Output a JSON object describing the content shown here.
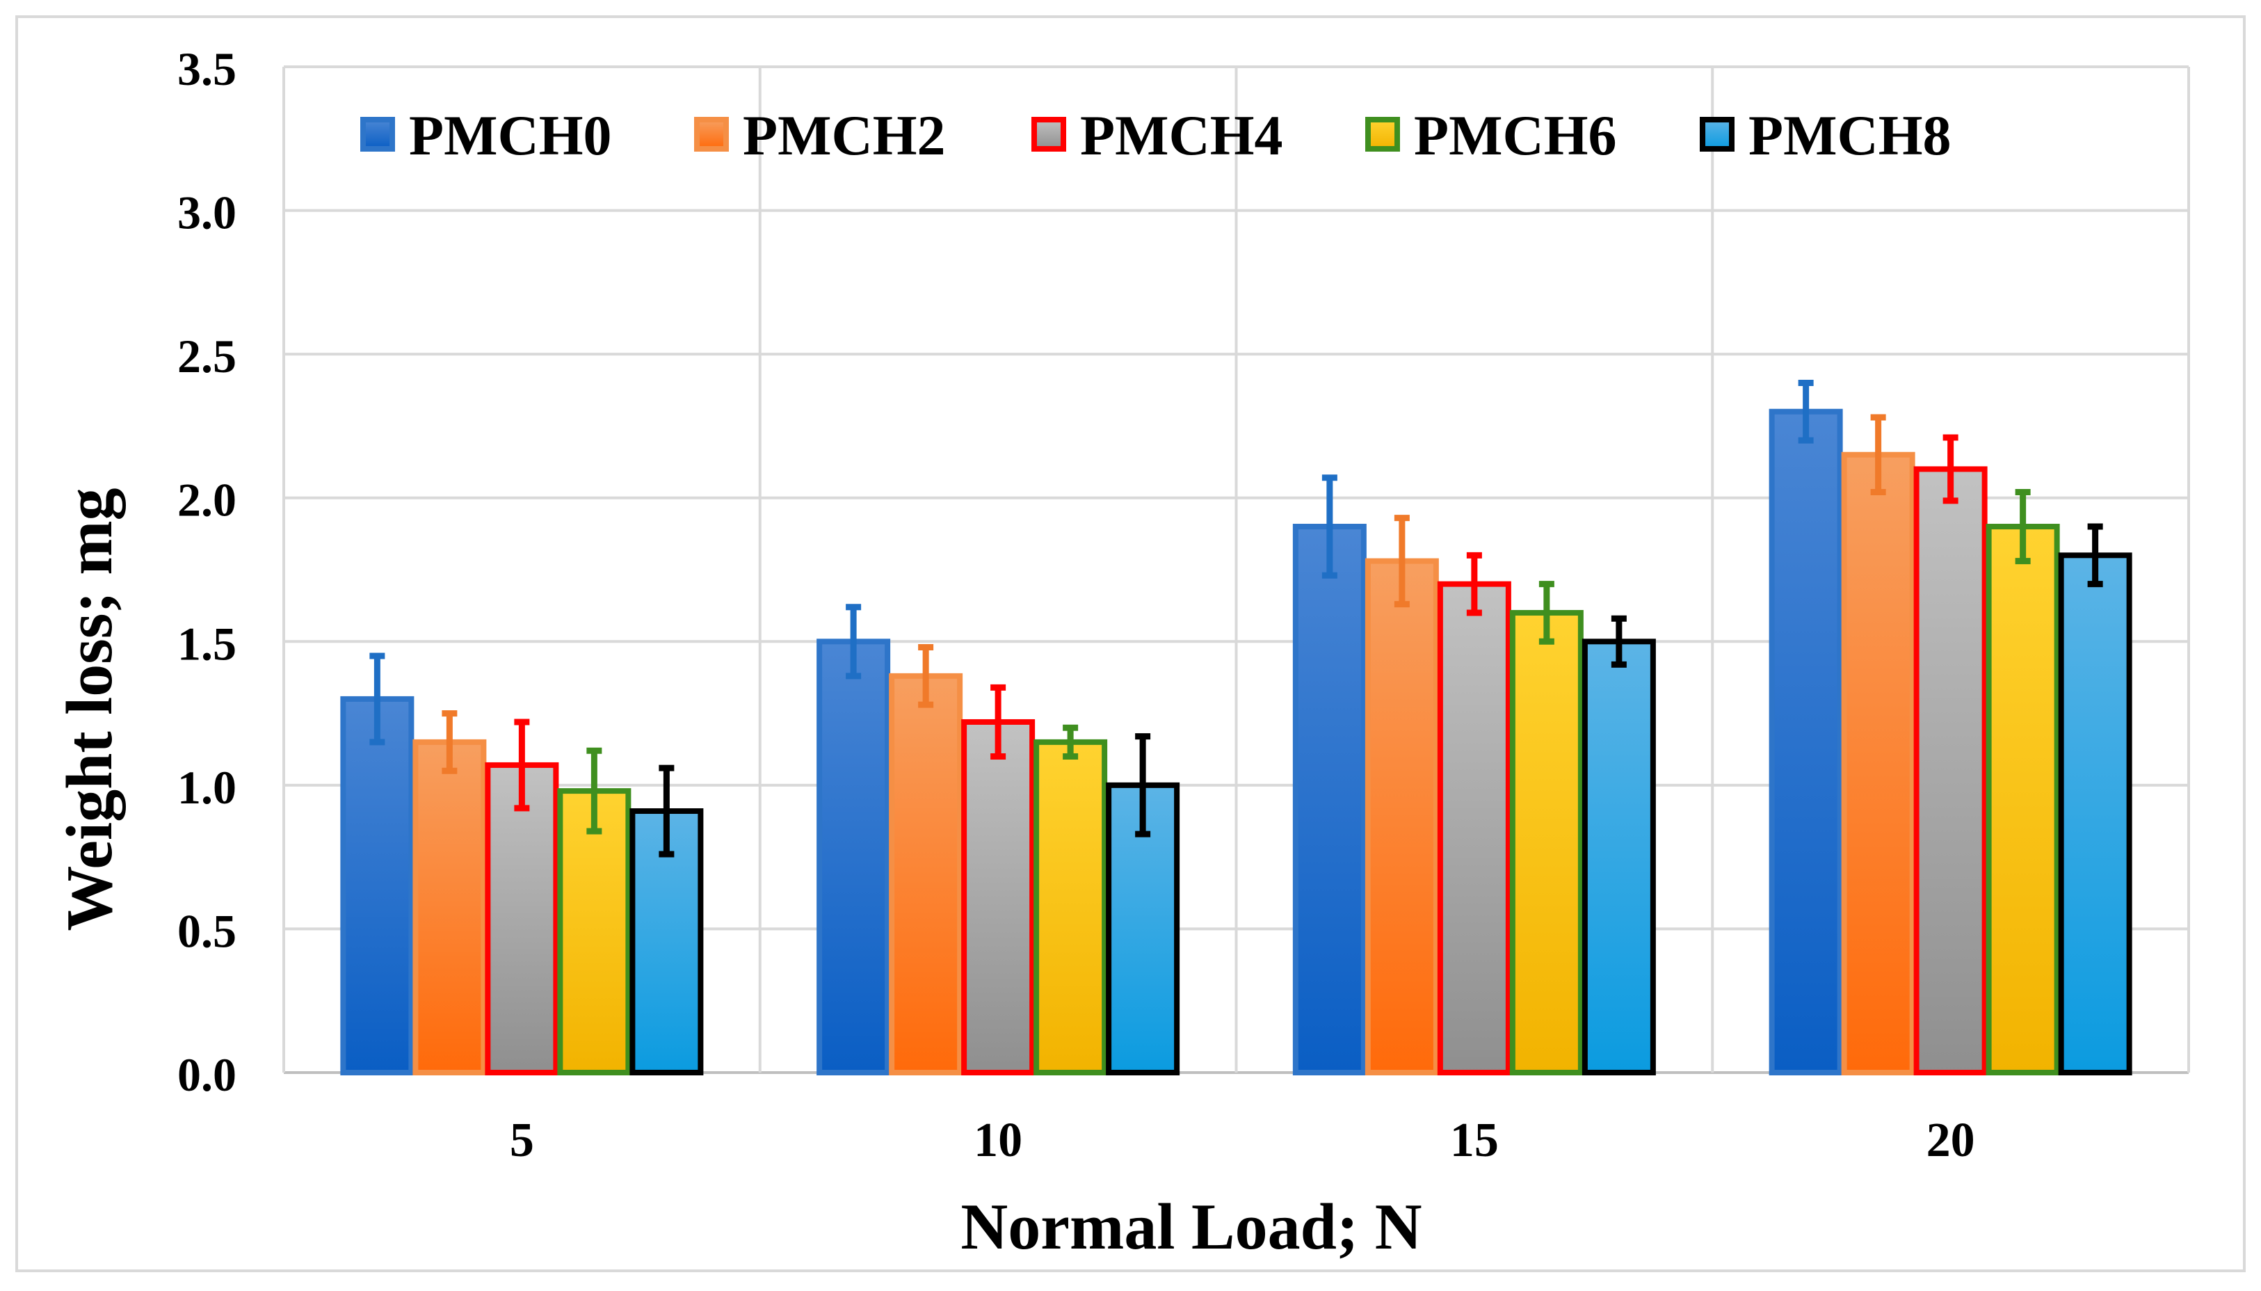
{
  "chart_data": {
    "type": "bar",
    "title": "",
    "xlabel": "Normal Load; N",
    "ylabel": "Weight loss; mg",
    "categories": [
      "5",
      "10",
      "15",
      "20"
    ],
    "ylim": [
      0,
      3.5
    ],
    "yticks": [
      "0.0",
      "0.5",
      "1.0",
      "1.5",
      "2.0",
      "2.5",
      "3.0",
      "3.5"
    ],
    "grid": true,
    "legend_position": "top",
    "error_bars": true,
    "series": [
      {
        "name": "PMCH0",
        "fill_top": "#4a86d4",
        "fill_bottom": "#0a5ec4",
        "border": "#2e75c9",
        "error_color": "#1f6fc5",
        "values": [
          1.3,
          1.5,
          1.9,
          2.3
        ],
        "errors": [
          0.15,
          0.12,
          0.17,
          0.1
        ]
      },
      {
        "name": "PMCH2",
        "fill_top": "#f79f60",
        "fill_bottom": "#ff6a0a",
        "border": "#f58f45",
        "error_color": "#f07a2a",
        "values": [
          1.15,
          1.38,
          1.78,
          2.15
        ],
        "errors": [
          0.1,
          0.1,
          0.15,
          0.13
        ]
      },
      {
        "name": "PMCH4",
        "fill_top": "#c2c2c2",
        "fill_bottom": "#8f8f8f",
        "border": "#ff0000",
        "error_color": "#ff0000",
        "values": [
          1.07,
          1.22,
          1.7,
          2.1
        ],
        "errors": [
          0.15,
          0.12,
          0.1,
          0.11
        ]
      },
      {
        "name": "PMCH6",
        "fill_top": "#ffd330",
        "fill_bottom": "#f2b300",
        "border": "#3f8f1f",
        "error_color": "#3f8f1f",
        "values": [
          0.98,
          1.15,
          1.6,
          1.9
        ],
        "errors": [
          0.14,
          0.05,
          0.1,
          0.12
        ]
      },
      {
        "name": "PMCH8",
        "fill_top": "#5cb4e6",
        "fill_bottom": "#0b9be0",
        "border": "#000000",
        "error_color": "#000000",
        "values": [
          0.91,
          1.0,
          1.5,
          1.8
        ],
        "errors": [
          0.15,
          0.17,
          0.08,
          0.1
        ]
      }
    ]
  }
}
